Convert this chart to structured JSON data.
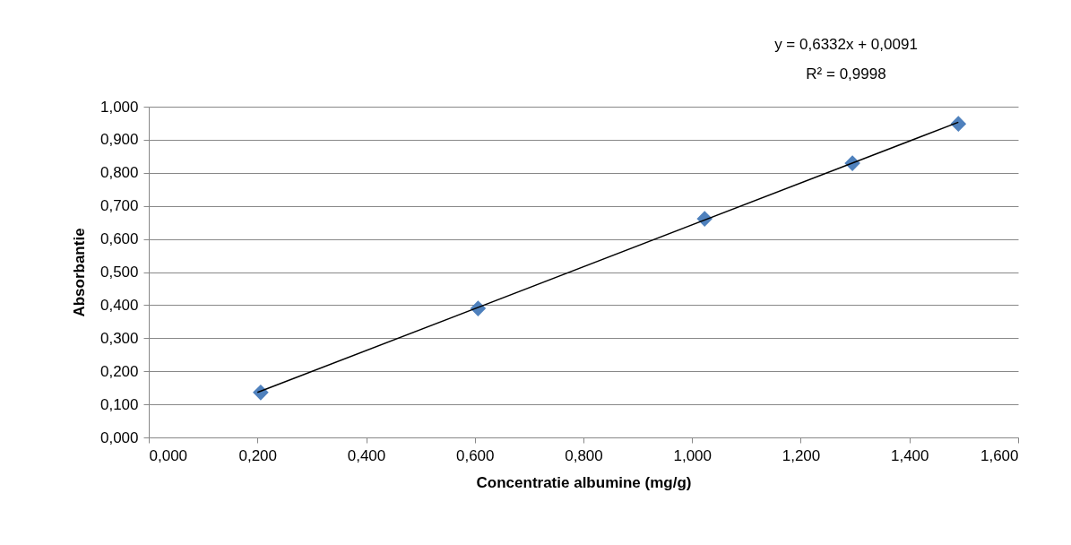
{
  "chart_data": {
    "type": "scatter",
    "xlabel": "Concentratie albumine (mg/g)",
    "ylabel": "Absorbantie",
    "xlim": [
      0,
      1.6
    ],
    "ylim": [
      0,
      1
    ],
    "xticks": [
      {
        "value": 0,
        "label": "0,000"
      },
      {
        "value": 0.2,
        "label": "0,200"
      },
      {
        "value": 0.4,
        "label": "0,400"
      },
      {
        "value": 0.6,
        "label": "0,600"
      },
      {
        "value": 0.8,
        "label": "0,800"
      },
      {
        "value": 1.0,
        "label": "1,000"
      },
      {
        "value": 1.2,
        "label": "1,200"
      },
      {
        "value": 1.4,
        "label": "1,400"
      },
      {
        "value": 1.6,
        "label": "1,600"
      }
    ],
    "yticks": [
      {
        "value": 0,
        "label": "0,000"
      },
      {
        "value": 0.1,
        "label": "0,100"
      },
      {
        "value": 0.2,
        "label": "0,200"
      },
      {
        "value": 0.3,
        "label": "0,300"
      },
      {
        "value": 0.4,
        "label": "0,400"
      },
      {
        "value": 0.5,
        "label": "0,500"
      },
      {
        "value": 0.6,
        "label": "0,600"
      },
      {
        "value": 0.7,
        "label": "0,700"
      },
      {
        "value": 0.8,
        "label": "0,800"
      },
      {
        "value": 0.9,
        "label": "0,900"
      },
      {
        "value": 1.0,
        "label": "1,000"
      }
    ],
    "grid": "y",
    "marker": "diamond",
    "series": [
      {
        "color": "#4f81bd",
        "x": [
          0.206,
          0.606,
          1.023,
          1.295,
          1.49
        ],
        "values": [
          0.136,
          0.39,
          0.661,
          0.829,
          0.948
        ]
      },
      {
        "type": "line",
        "marker": "none",
        "color": "#000000",
        "x": [
          0.2,
          1.49
        ],
        "values": [
          0.136,
          0.953
        ]
      }
    ],
    "annotations": [
      "y = 0,6332x + 0,0091",
      "R² = 0,9998"
    ]
  }
}
